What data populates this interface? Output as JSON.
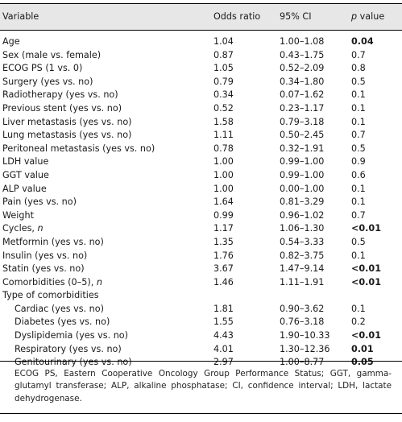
{
  "header": {
    "variable": "Variable",
    "odds_ratio": "Odds ratio",
    "ci": "95% CI",
    "p_italic": "p",
    "p_rest": " value"
  },
  "rows": [
    {
      "variable": "Age",
      "or": "1.04",
      "ci": "1.00–1.08",
      "p": "0.04",
      "bold": true
    },
    {
      "variable": "Sex (male vs. female)",
      "or": "0.87",
      "ci": "0.43–1.75",
      "p": "0.7"
    },
    {
      "variable": "ECOG PS (1 vs. 0)",
      "or": "1.05",
      "ci": "0.52–2.09",
      "p": "0.8"
    },
    {
      "variable": "Surgery (yes vs. no)",
      "or": "0.79",
      "ci": "0.34–1.80",
      "p": "0.5"
    },
    {
      "variable": "Radiotherapy (yes vs. no)",
      "or": "0.34",
      "ci": "0.07–1.62",
      "p": "0.1"
    },
    {
      "variable": "Previous stent (yes vs. no)",
      "or": "0.52",
      "ci": "0.23–1.17",
      "p": "0.1"
    },
    {
      "variable": "Liver metastasis (yes vs. no)",
      "or": "1.58",
      "ci": "0.79–3.18",
      "p": "0.1"
    },
    {
      "variable": "Lung metastasis (yes vs. no)",
      "or": "1.11",
      "ci": "0.50–2.45",
      "p": "0.7"
    },
    {
      "variable": "Peritoneal metastasis (yes vs. no)",
      "or": "0.78",
      "ci": "0.32–1.91",
      "p": "0.5"
    },
    {
      "variable": "LDH value",
      "or": "1.00",
      "ci": "0.99–1.00",
      "p": "0.9"
    },
    {
      "variable": "GGT value",
      "or": "1.00",
      "ci": "0.99–1.00",
      "p": "0.6"
    },
    {
      "variable": "ALP value",
      "or": "1.00",
      "ci": "0.00–1.00",
      "p": "0.1"
    },
    {
      "variable": "Pain (yes vs. no)",
      "or": "1.64",
      "ci": "0.81–3.29",
      "p": "0.1"
    },
    {
      "variable": "Weight",
      "or": "0.99",
      "ci": "0.96–1.02",
      "p": "0.7"
    },
    {
      "variable": "Cycles, ",
      "var_italic": "n",
      "or": "1.17",
      "ci": "1.06–1.30",
      "p": "<0.01",
      "bold": true
    },
    {
      "variable": "Metformin (yes vs. no)",
      "or": "1.35",
      "ci": "0.54–3.33",
      "p": "0.5"
    },
    {
      "variable": "Insulin (yes vs. no)",
      "or": "1.76",
      "ci": "0.82–3.75",
      "p": "0.1"
    },
    {
      "variable": "Statin (yes vs. no)",
      "or": "3.67",
      "ci": "1.47–9.14",
      "p": "<0.01",
      "bold": true
    },
    {
      "variable": "Comorbidities (0–5), ",
      "var_italic": "n",
      "or": "1.46",
      "ci": "1.11–1.91",
      "p": "<0.01",
      "bold": true
    },
    {
      "variable": "Type of comorbidities",
      "or": "",
      "ci": "",
      "p": ""
    },
    {
      "variable": "Cardiac (yes vs. no)",
      "or": "1.81",
      "ci": "0.90–3.62",
      "p": "0.1",
      "indent": true
    },
    {
      "variable": "Diabetes (yes vs. no)",
      "or": "1.55",
      "ci": "0.76–3.18",
      "p": "0.2",
      "indent": true
    },
    {
      "variable": "Dyslipidemia (yes vs. no)",
      "or": "4.43",
      "ci": "1.90–10.33",
      "p": "<0.01",
      "bold": true,
      "indent": true
    },
    {
      "variable": "Respiratory (yes vs. no)",
      "or": "4.01",
      "ci": "1.30–12.36",
      "p": "0.01",
      "bold": true,
      "indent": true
    },
    {
      "variable": "Genitourinary (yes vs. no)",
      "or": "2.97",
      "ci": "1.00–8.77",
      "p": "0.05",
      "bold": true,
      "indent": true
    }
  ],
  "footnote": "ECOG PS, Eastern Cooperative Oncology Group Performance Status; GGT, gamma-glutamyl transferase; ALP, alkaline phosphatase; CI, confidence interval; LDH, lactate dehydrogenase."
}
